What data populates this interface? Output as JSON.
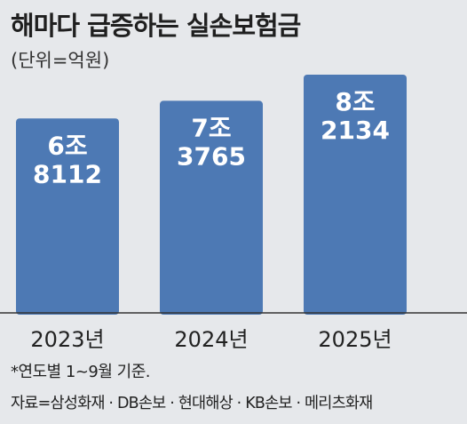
{
  "chart_data": {
    "type": "bar",
    "title": "해마다 급증하는 실손보험금",
    "subtitle": "(단위=억원)",
    "categories": [
      "2023년",
      "2024년",
      "2025년"
    ],
    "values": [
      68112,
      73765,
      82134
    ],
    "value_labels": [
      [
        "6조",
        "8112"
      ],
      [
        "7조",
        "3765"
      ],
      [
        "8조",
        "2134"
      ]
    ],
    "ylim": [
      0,
      85000
    ],
    "grid": false,
    "colors": {
      "bar": "#4d79b4",
      "bar_text": "#ffffff",
      "baseline": "#333333"
    }
  },
  "notes": {
    "basis": "*연도별 1~9월 기준.",
    "source": "자료=삼성화재 · DB손보 · 현대해상 · KB손보 · 메리츠화재"
  }
}
